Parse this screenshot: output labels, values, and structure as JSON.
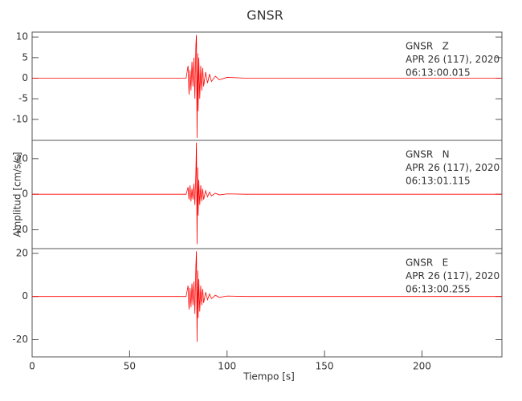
{
  "chart_data": [
    {
      "type": "line",
      "title": "GNSR",
      "annotations": [
        "GNSR   Z",
        "APR 26 (117), 2020",
        "06:13:00.015"
      ],
      "x": [
        0,
        79,
        80,
        80.5,
        81,
        81.5,
        82,
        82.5,
        83,
        83.5,
        84,
        84.3,
        84.6,
        84.9,
        85.2,
        85.5,
        86,
        86.5,
        87,
        87.5,
        88,
        89,
        90,
        91,
        92,
        94,
        96,
        100,
        110,
        241
      ],
      "series": [
        {
          "color": "#ff0000",
          "values": [
            0,
            0,
            3,
            -4,
            2,
            -3,
            4,
            -2,
            5,
            -5,
            8,
            10.5,
            -14.5,
            6,
            -8,
            5,
            -5,
            3,
            -3,
            2.5,
            -2,
            1.5,
            -1.2,
            1,
            -0.8,
            0.5,
            -0.4,
            0.2,
            0,
            0
          ]
        }
      ],
      "xlim": [
        0,
        241
      ],
      "ylim": [
        -15.1,
        11.2
      ],
      "yticks": [
        -10,
        -5,
        0,
        5,
        10
      ]
    },
    {
      "type": "line",
      "ylabel": "Amplitud [cm/s/s]",
      "annotations": [
        "GNSR   N",
        "APR 26 (117), 2020",
        "06:13:01.115"
      ],
      "x": [
        0,
        79,
        80,
        80.5,
        81,
        81.5,
        82,
        82.5,
        83,
        83.5,
        84,
        84.3,
        84.6,
        84.9,
        85.2,
        85.5,
        86,
        86.5,
        87,
        87.5,
        88,
        89,
        90,
        91,
        92,
        94,
        96,
        100,
        110,
        241
      ],
      "series": [
        {
          "color": "#ff0000",
          "values": [
            0,
            0,
            4,
            -3,
            5,
            -4,
            3,
            -3,
            6,
            -6,
            12,
            29,
            -28,
            15,
            -12,
            8,
            -6,
            5,
            -4,
            3,
            -3,
            2,
            -1.5,
            1.2,
            -1,
            0.6,
            -0.4,
            0.2,
            0,
            0
          ]
        }
      ],
      "xlim": [
        0,
        241
      ],
      "ylim": [
        -30.6,
        30.3
      ],
      "yticks": [
        -20,
        0,
        20
      ]
    },
    {
      "type": "line",
      "xlabel": "Tiempo [s]",
      "annotations": [
        "GNSR   E",
        "APR 26 (117), 2020",
        "06:13:00.255"
      ],
      "x": [
        0,
        79,
        80,
        80.5,
        81,
        81.5,
        82,
        82.5,
        83,
        83.5,
        84,
        84.3,
        84.6,
        84.9,
        85.2,
        85.5,
        86,
        86.5,
        87,
        87.5,
        88,
        89,
        90,
        91,
        92,
        94,
        96,
        100,
        110,
        241
      ],
      "series": [
        {
          "color": "#ff0000",
          "values": [
            0,
            0,
            5,
            -6,
            4,
            -5,
            6,
            -4,
            7,
            -8,
            14,
            21,
            -21,
            12,
            -10,
            8,
            -7,
            5,
            -4,
            3.5,
            -3,
            2,
            -1.5,
            1.2,
            -1,
            0.6,
            -0.4,
            0.2,
            0,
            0
          ]
        }
      ],
      "xlim": [
        0,
        241
      ],
      "ylim": [
        -28,
        22.2
      ],
      "yticks": [
        -20,
        0,
        20
      ],
      "xticks": [
        0,
        50,
        100,
        150,
        200
      ]
    }
  ]
}
